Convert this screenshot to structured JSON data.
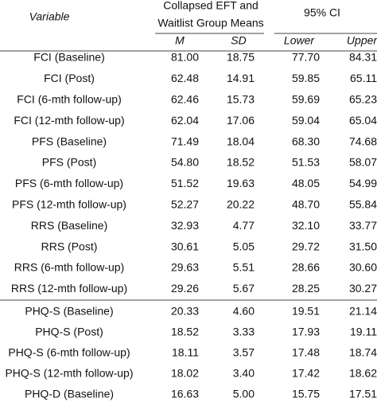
{
  "header": {
    "variable": "Variable",
    "group_means": [
      "Collapsed EFT and",
      "Waitlist Group Means"
    ],
    "ci": "95% CI",
    "columns": [
      "M",
      "SD",
      "Lower",
      "Upper"
    ]
  },
  "table": {
    "rows": [
      [
        "FCI (Baseline)",
        "81.00",
        "18.75",
        "77.70",
        "84.31"
      ],
      [
        "FCI (Post)",
        "62.48",
        "14.91",
        "59.85",
        "65.11"
      ],
      [
        "FCI (6-mth follow-up)",
        "62.46",
        "15.73",
        "59.69",
        "65.23"
      ],
      [
        "FCI (12-mth follow-up)",
        "62.04",
        "17.06",
        "59.04",
        "65.04"
      ],
      [
        "PFS (Baseline)",
        "71.49",
        "18.04",
        "68.30",
        "74.68"
      ],
      [
        "PFS (Post)",
        "54.80",
        "18.52",
        "51.53",
        "58.07"
      ],
      [
        "PFS (6-mth follow-up)",
        "51.52",
        "19.63",
        "48.05",
        "54.99"
      ],
      [
        "PFS (12-mth follow-up)",
        "52.27",
        "20.22",
        "48.70",
        "55.84"
      ],
      [
        "RRS (Baseline)",
        "32.93",
        "4.77",
        "32.10",
        "33.77"
      ],
      [
        "RRS (Post)",
        "30.61",
        "5.05",
        "29.72",
        "31.50"
      ],
      [
        "RRS (6-mth follow-up)",
        "29.63",
        "5.51",
        "28.66",
        "30.60"
      ],
      [
        "RRS (12-mth follow-up)",
        "29.26",
        "5.67",
        "28.25",
        "30.27"
      ],
      [
        "PHQ-S (Baseline)",
        "20.33",
        "4.60",
        "19.51",
        "21.14"
      ],
      [
        "PHQ-S (Post)",
        "18.52",
        "3.33",
        "17.93",
        "19.11"
      ],
      [
        "PHQ-S (6-mth follow-up)",
        "18.11",
        "3.57",
        "17.48",
        "18.74"
      ],
      [
        "PHQ-S (12-mth follow-up)",
        "18.02",
        "3.40",
        "17.42",
        "18.62"
      ],
      [
        "PHQ-D (Baseline)",
        "16.63",
        "5.00",
        "15.75",
        "17.51"
      ]
    ]
  }
}
